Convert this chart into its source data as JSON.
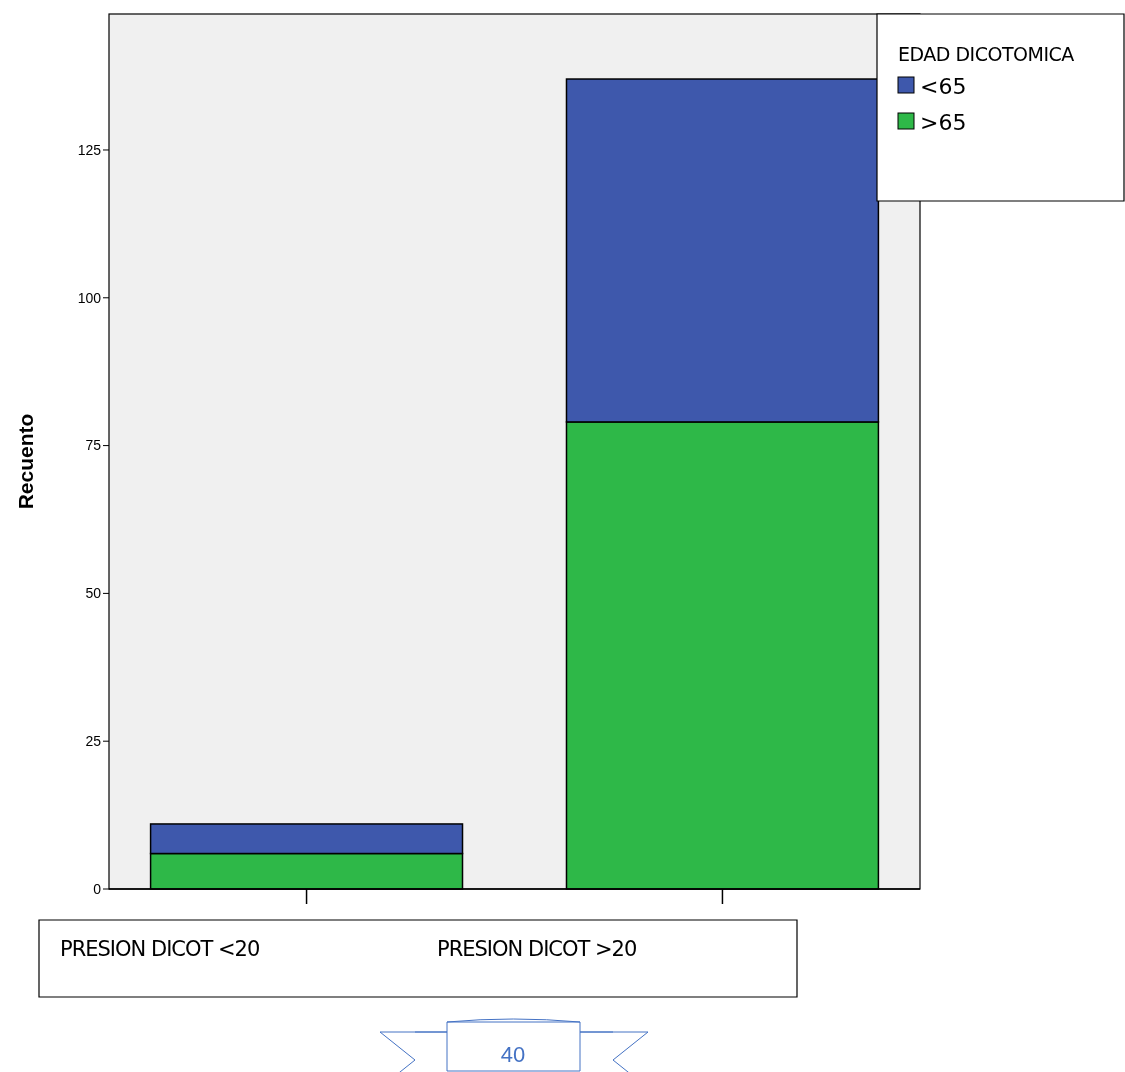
{
  "chart_data": {
    "type": "bar",
    "stacked": true,
    "ylabel": "Recuento",
    "legend_title": "EDAD  DICOTOMICA",
    "categories": [
      "PRESION DICOT <20",
      "PRESION DICOT >20"
    ],
    "series": [
      {
        "name": ">65",
        "color": "#2eb848",
        "values": [
          6,
          79
        ]
      },
      {
        "name": "<65",
        "color": "#3e58ac",
        "values": [
          5,
          58
        ]
      }
    ],
    "ylim": [
      0,
      148
    ],
    "yticks": [
      0,
      25,
      50,
      75,
      100,
      125
    ],
    "grid": false,
    "legend": "top right",
    "annotations": [
      "40"
    ]
  }
}
